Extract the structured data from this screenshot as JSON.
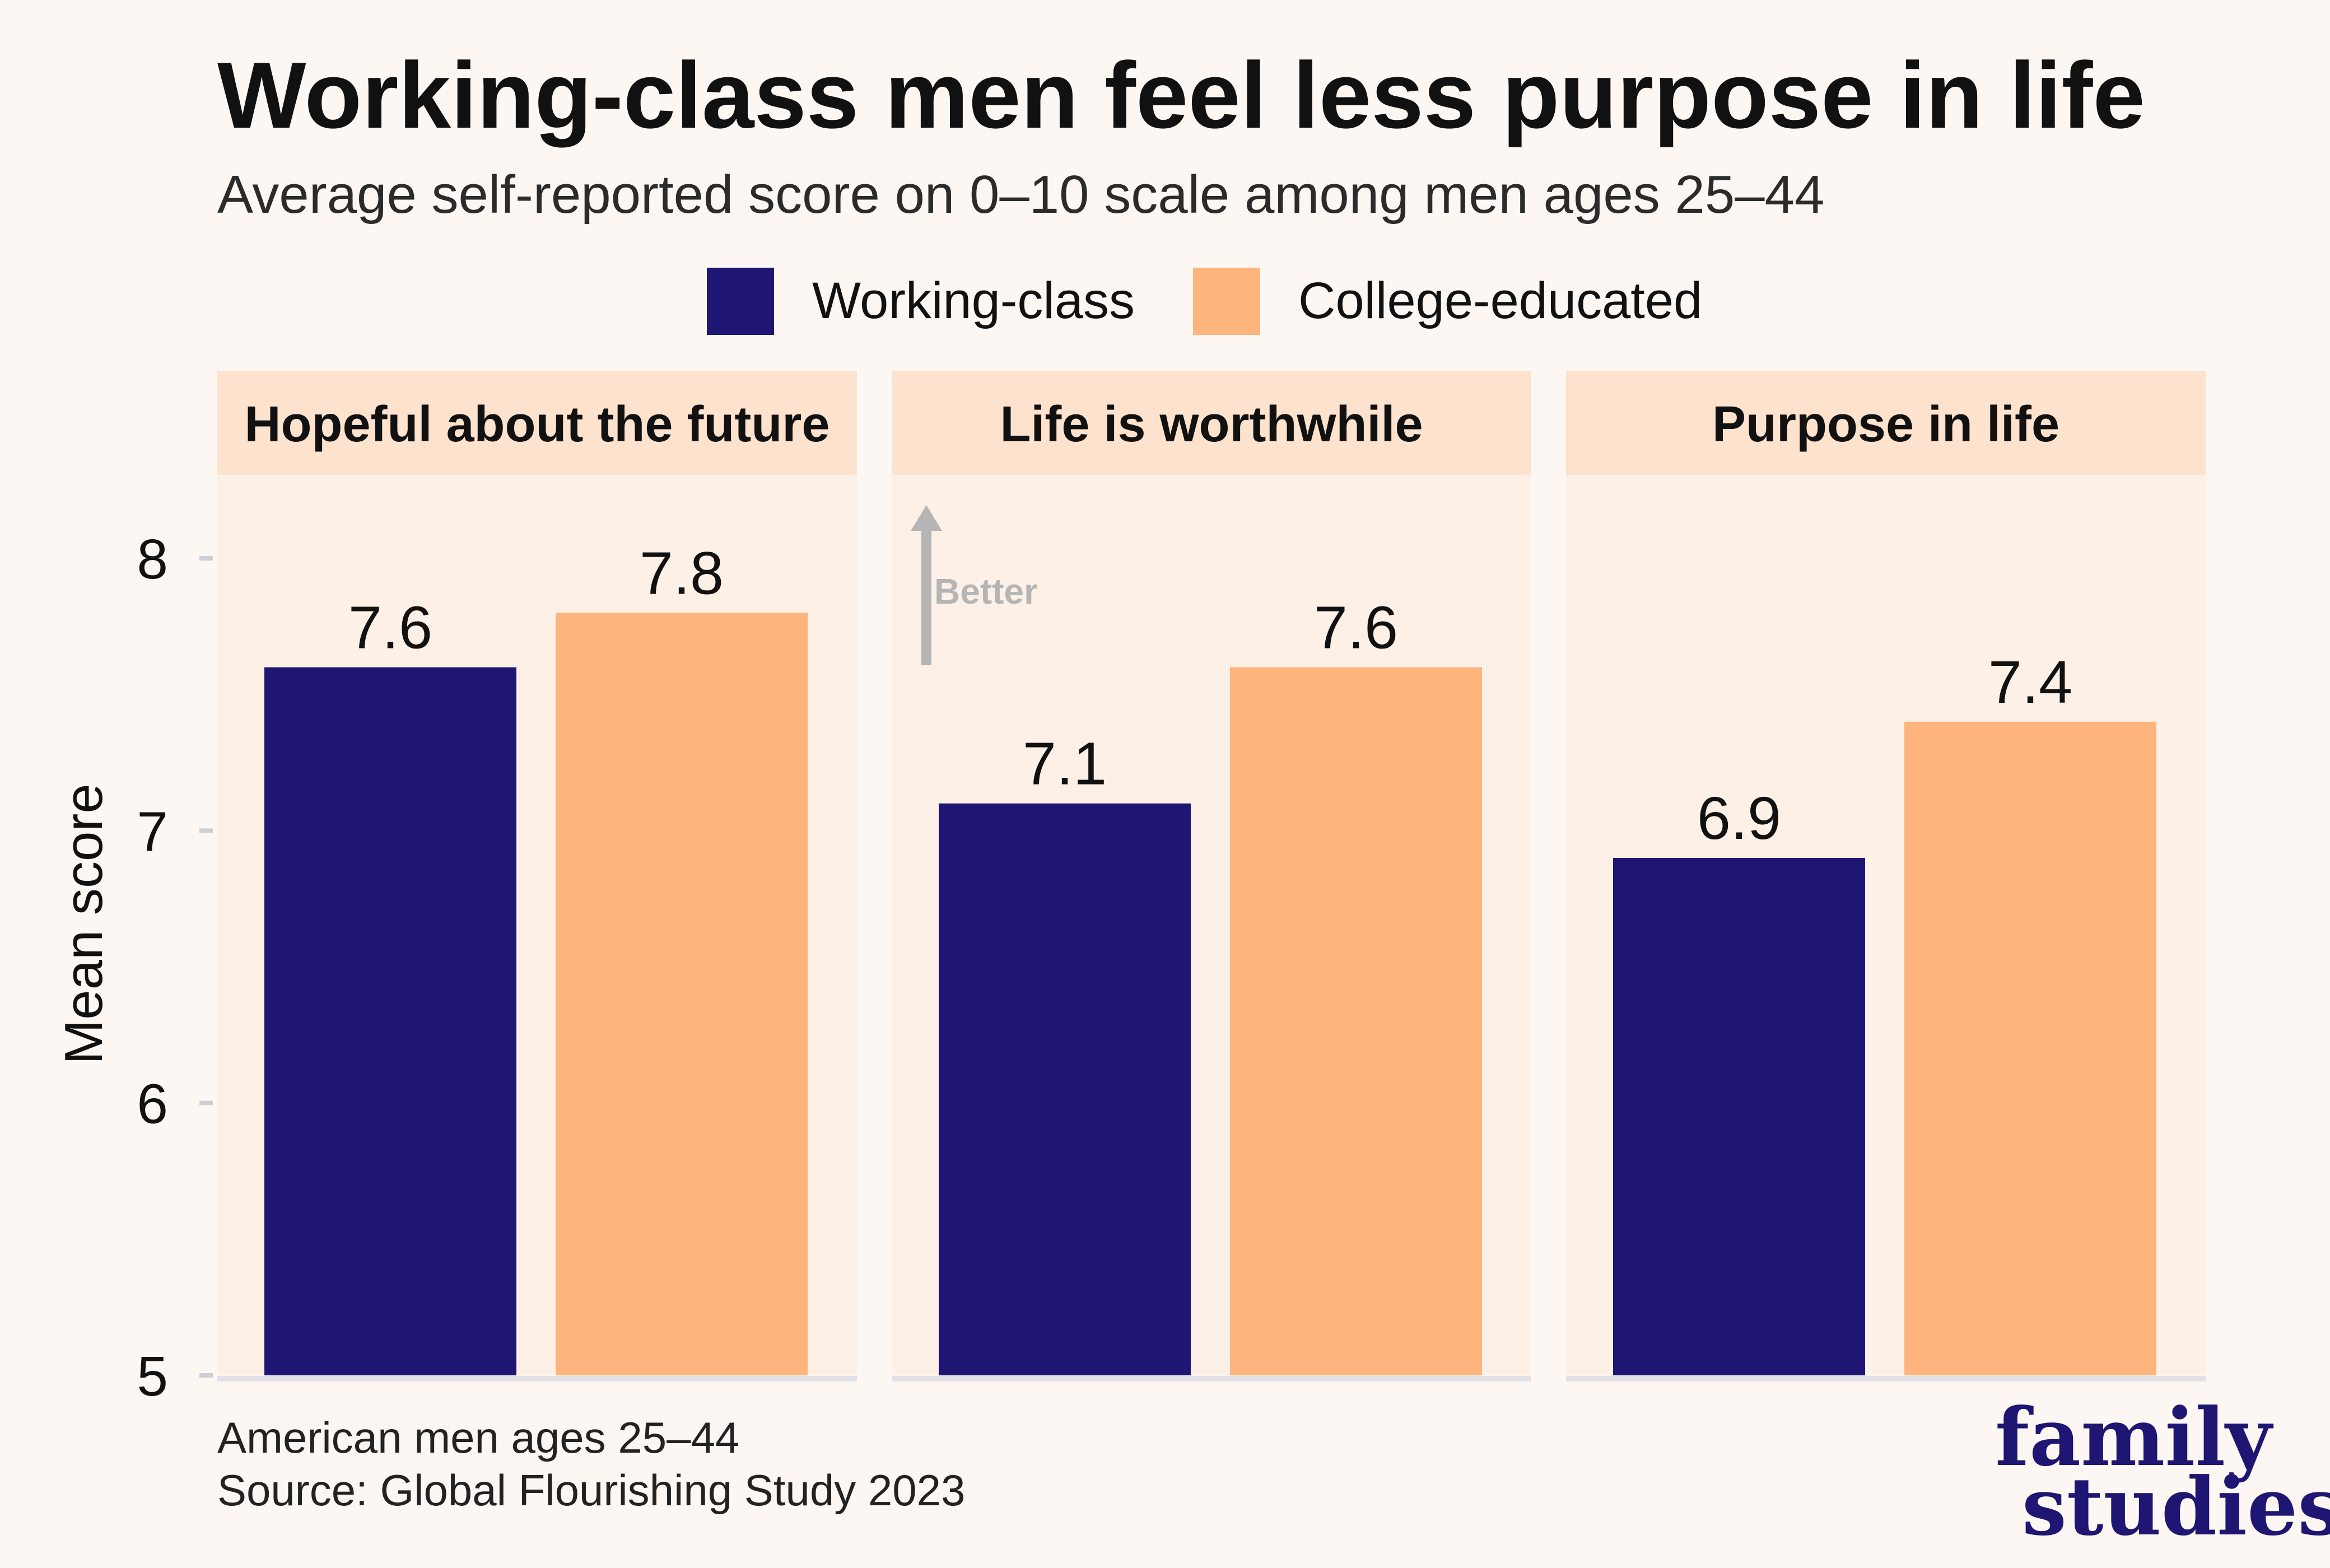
{
  "title": "Working-class men feel less purpose in life",
  "subtitle": "Average self-reported score on 0–10 scale among men ages 25–44",
  "ylabel": "Mean score",
  "annotation": "Better",
  "caption_line1": "American men ages 25–44",
  "caption_line2": "Source: Global Flourishing Study 2023",
  "logo": "family studies",
  "colors": {
    "working_class": "#1e1672",
    "college_educated": "#fdb57d",
    "panel_bg": "#fdf0e6",
    "strip_bg": "#fde2cd",
    "page_bg": "#fdf7f3",
    "annotation": "#b5b5b5",
    "logo": "#1e1672"
  },
  "chart_data": {
    "type": "bar",
    "title": "Working-class men feel less purpose in life",
    "subtitle": "Average self-reported score on 0–10 scale among men ages 25–44",
    "ylabel": "Mean score",
    "ylim": [
      5,
      8.3
    ],
    "yticks": [
      5,
      6,
      7,
      8
    ],
    "legend": {
      "position": "top",
      "entries": [
        "Working-class",
        "College-educated"
      ]
    },
    "panels": [
      {
        "name": "Hopeful about the future",
        "series": [
          {
            "name": "Working-class",
            "value": 7.6
          },
          {
            "name": "College-educated",
            "value": 7.8
          }
        ]
      },
      {
        "name": "Life is worthwhile",
        "series": [
          {
            "name": "Working-class",
            "value": 7.1
          },
          {
            "name": "College-educated",
            "value": 7.6
          }
        ]
      },
      {
        "name": "Purpose in life",
        "series": [
          {
            "name": "Working-class",
            "value": 6.9
          },
          {
            "name": "College-educated",
            "value": 7.4
          }
        ]
      }
    ],
    "labels": [
      {
        "panel": 0,
        "series": 0,
        "text": "7.6"
      },
      {
        "panel": 0,
        "series": 1,
        "text": "7.8"
      },
      {
        "panel": 1,
        "series": 0,
        "text": "7.1"
      },
      {
        "panel": 1,
        "series": 1,
        "text": "7.6"
      },
      {
        "panel": 2,
        "series": 0,
        "text": "6.9"
      },
      {
        "panel": 2,
        "series": 1,
        "text": "7.4"
      }
    ]
  }
}
